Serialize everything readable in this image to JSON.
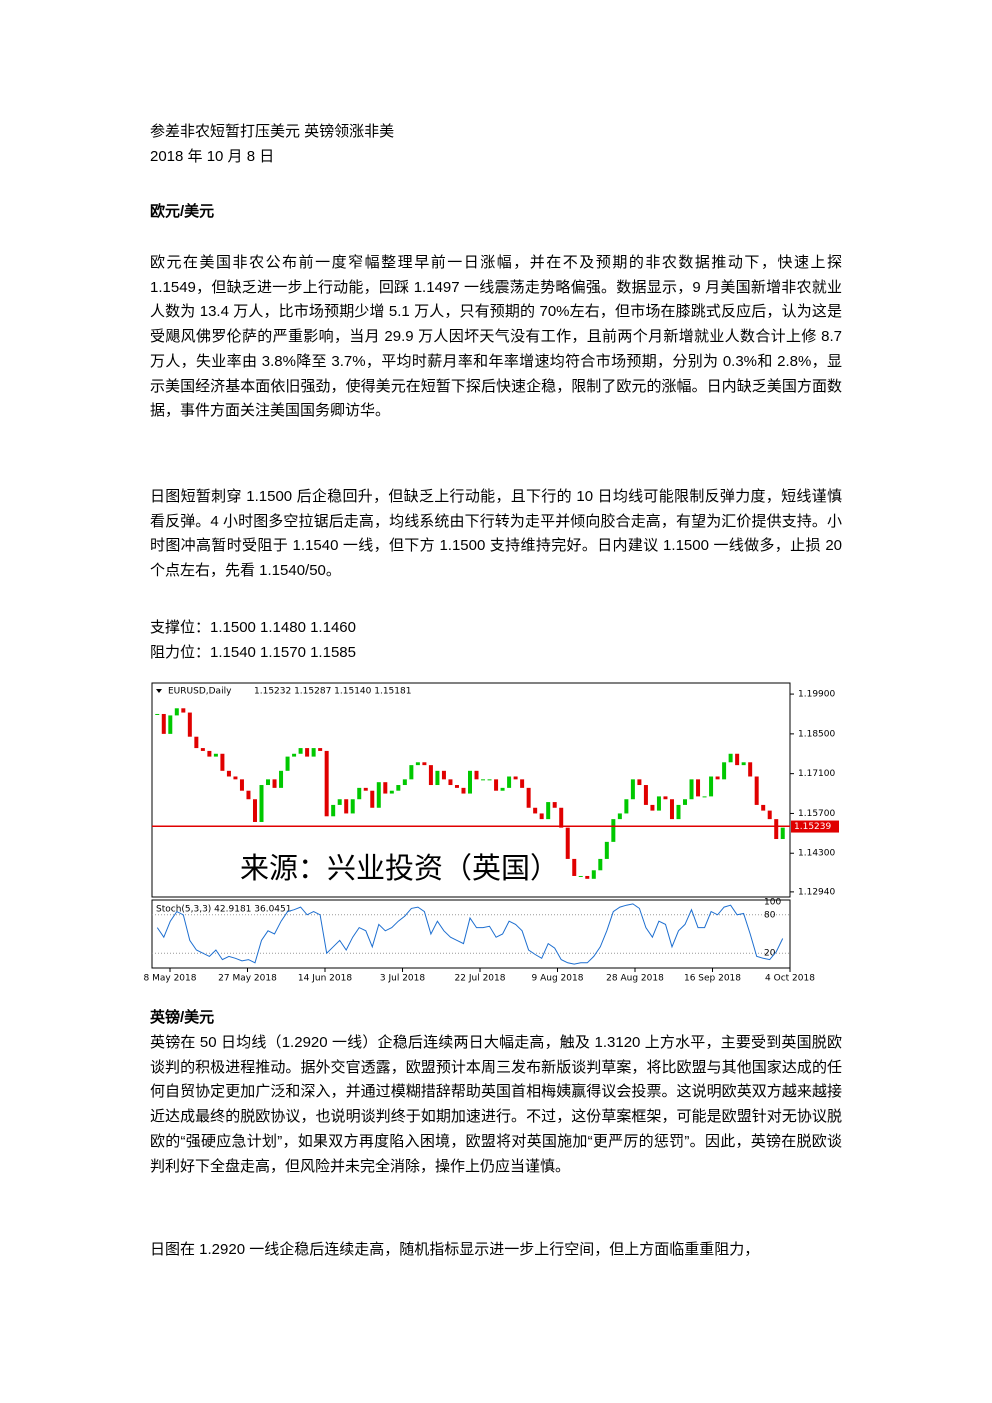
{
  "document": {
    "title": "参差非农短暂打压美元 英镑领涨非美",
    "date": "2018 年 10 月 8 日",
    "sections": [
      {
        "heading": "欧元/美元",
        "paragraphs": [
          "欧元在美国非农公布前一度窄幅整理早前一日涨幅，并在不及预期的非农数据推动下，快速上探 1.1549，但缺乏进一步上行动能，回踩 1.1497 一线震荡走势略偏强。数据显示，9 月美国新增非农就业人数为 13.4 万人，比市场预期少增 5.1 万人，只有预期的 70%左右，但市场在膝跳式反应后，认为这是受飓风佛罗伦萨的严重影响，当月 29.9 万人因坏天气没有工作，且前两个月新增就业人数合计上修 8.7 万人，失业率由 3.8%降至 3.7%，平均时薪月率和年率增速均符合市场预期，分别为 0.3%和 2.8%，显示美国经济基本面依旧强劲，使得美元在短暂下探后快速企稳，限制了欧元的涨幅。日内缺乏美国方面数据，事件方面关注美国国务卿访华。",
          "日图短暂刺穿 1.1500 后企稳回升，但缺乏上行动能，且下行的 10 日均线可能限制反弹力度，短线谨慎看反弹。4 小时图多空拉锯后走高，均线系统由下行转为走平并倾向胶合走高，有望为汇价提供支持。小时图冲高暂时受阻于 1.1540 一线，但下方 1.1500 支持维持完好。日内建议 1.1500 一线做多，止损 20 个点左右，先看 1.1540/50。"
        ],
        "support": "支撑位：1.1500 1.1480 1.1460",
        "resistance": "阻力位：1.1540 1.1570 1.1585"
      },
      {
        "heading": "英镑/美元",
        "paragraphs": [
          "英镑在 50 日均线（1.2920 一线）企稳后连续两日大幅走高，触及 1.3120 上方水平，主要受到英国脱欧谈判的积极进程推动。据外交官透露，欧盟预计本周三发布新版谈判草案，将比欧盟与其他国家达成的任何自贸协定更加广泛和深入，并通过模糊措辞帮助英国首相梅姨赢得议会投票。这说明欧英双方越来越接近达成最终的脱欧协议，也说明谈判终于如期加速进行。不过，这份草案框架，可能是欧盟针对无协议脱欧的“强硬应急计划”，如果双方再度陷入困境，欧盟将对英国施加“更严厉的惩罚”。因此，英镑在脱欧谈判利好下全盘走高，但风险并未完全消除，操作上仍应当谨慎。",
          "日图在 1.2920 一线企稳后连续走高，随机指标显示进一步上行空间，但上方面临重重阻力，"
        ]
      }
    ]
  },
  "chart_data": {
    "type": "candlestick",
    "title": "EURUSD,Daily",
    "ohlc": "1.15232 1.15287 1.15140 1.15181",
    "watermark": "来源：兴业投资（英国）",
    "x_labels": [
      "8 May 2018",
      "27 May 2018",
      "14 Jun 2018",
      "3 Jul 2018",
      "22 Jul 2018",
      "9 Aug 2018",
      "28 Aug 2018",
      "16 Sep 2018",
      "4 Oct 2018"
    ],
    "series": [
      {
        "name": "EURUSD",
        "up_color": "#00c800",
        "down_color": "#e00000",
        "values": [
          1.192,
          1.185,
          1.1915,
          1.194,
          1.1925,
          1.184,
          1.18,
          1.179,
          1.177,
          1.178,
          1.172,
          1.17,
          1.169,
          1.165,
          1.162,
          1.154,
          1.167,
          1.169,
          1.166,
          1.172,
          1.177,
          1.178,
          1.18,
          1.177,
          1.18,
          1.179,
          1.156,
          1.16,
          1.162,
          1.157,
          1.162,
          1.166,
          1.165,
          1.159,
          1.168,
          1.164,
          1.165,
          1.167,
          1.169,
          1.174,
          1.175,
          1.174,
          1.167,
          1.172,
          1.169,
          1.167,
          1.166,
          1.164,
          1.172,
          1.169,
          1.169,
          1.169,
          1.165,
          1.166,
          1.17,
          1.169,
          1.166,
          1.159,
          1.157,
          1.155,
          1.161,
          1.159,
          1.152,
          1.141,
          1.135,
          1.135,
          1.134,
          1.137,
          1.141,
          1.147,
          1.155,
          1.157,
          1.162,
          1.169,
          1.167,
          1.16,
          1.158,
          1.163,
          1.162,
          1.155,
          1.16,
          1.162,
          1.169,
          1.163,
          1.163,
          1.17,
          1.169,
          1.175,
          1.178,
          1.174,
          1.175,
          1.17,
          1.16,
          1.158,
          1.155,
          1.148,
          1.152
        ]
      },
      {
        "name": "Stoch(5,3,3)",
        "color": "#1e6fd0",
        "values": [
          60,
          45,
          70,
          85,
          80,
          40,
          25,
          20,
          15,
          25,
          10,
          15,
          12,
          8,
          10,
          5,
          40,
          55,
          50,
          70,
          85,
          88,
          92,
          80,
          85,
          80,
          20,
          30,
          40,
          25,
          45,
          60,
          55,
          30,
          65,
          55,
          60,
          70,
          78,
          90,
          92,
          85,
          50,
          70,
          55,
          45,
          40,
          35,
          75,
          60,
          60,
          62,
          45,
          50,
          70,
          65,
          55,
          25,
          18,
          12,
          35,
          28,
          10,
          5,
          3,
          5,
          5,
          15,
          30,
          55,
          85,
          92,
          95,
          97,
          90,
          60,
          45,
          70,
          65,
          30,
          55,
          65,
          88,
          60,
          60,
          85,
          80,
          92,
          95,
          80,
          82,
          50,
          15,
          12,
          10,
          22,
          43
        ]
      }
    ],
    "support_line": 1.1525,
    "current_price": {
      "value": 1.15239,
      "label": "1.15239"
    },
    "ylim": [
      1.1276,
      1.2029
    ],
    "yticks": [
      {
        "value": 1.199,
        "label": "1.19900"
      },
      {
        "value": 1.185,
        "label": "1.18500"
      },
      {
        "value": 1.171,
        "label": "1.17100"
      },
      {
        "value": 1.157,
        "label": "1.15700"
      },
      {
        "value": 1.143,
        "label": "1.14300"
      },
      {
        "value": 1.1294,
        "label": "1.12940"
      }
    ],
    "stoch_title": "Stoch(5,3,3) 42.9181 36.0451",
    "y2lim": [
      0,
      100
    ],
    "y2ticks": [
      100,
      80,
      20
    ]
  }
}
